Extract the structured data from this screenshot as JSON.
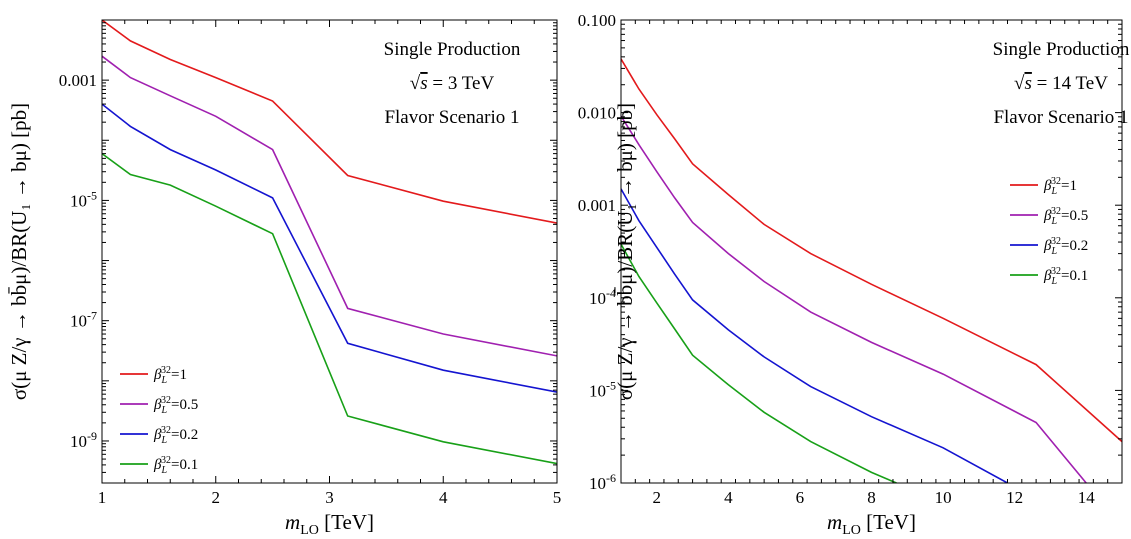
{
  "chart_data": [
    {
      "type": "line",
      "ylabel": "σ(μ Z/γ → bb̄μ)/BR(U₁ → bμ) [pb]",
      "xlabel": "m_LO [TeV]",
      "xlim": [
        1,
        5
      ],
      "ylim": [
        2e-10,
        0.01
      ],
      "yscale": "log",
      "xticks": [
        "1",
        "2",
        "3",
        "4",
        "5"
      ],
      "yticks": [
        {
          "v": 0.001,
          "label": "0.001"
        },
        {
          "v": 1e-05,
          "label": "10^-5"
        },
        {
          "v": 1e-07,
          "label": "10^-7"
        },
        {
          "v": 1e-09,
          "label": "10^-9"
        }
      ],
      "annotations": [
        "Single Production",
        "√s = 3 TeV",
        "Flavor Scenario 1"
      ],
      "legend_position": "bottom-left",
      "series": [
        {
          "name": "β_L^32=1",
          "color": "#e31a1c",
          "x": [
            1,
            1.25,
            1.6,
            2,
            2.5,
            3.16,
            4,
            5
          ],
          "y": [
            0.01,
            0.0045,
            0.0022,
            0.0011,
            0.00045,
            2.6e-05,
            9.7e-06,
            4.2e-06
          ]
        },
        {
          "name": "β_L^32=0.5",
          "color": "#a020b0",
          "x": [
            1,
            1.25,
            1.6,
            2,
            2.5,
            3.16,
            4,
            5
          ],
          "y": [
            0.0025,
            0.0011,
            0.00055,
            0.00025,
            7e-05,
            1.6e-07,
            6e-08,
            2.6e-08
          ]
        },
        {
          "name": "β_L^32=0.2",
          "color": "#1414d0",
          "x": [
            1,
            1.25,
            1.6,
            2,
            2.5,
            3.16,
            4,
            5
          ],
          "y": [
            0.0004,
            0.00017,
            7e-05,
            3.2e-05,
            1.1e-05,
            4.2e-08,
            1.5e-08,
            6.5e-09
          ]
        },
        {
          "name": "β_L^32=0.1",
          "color": "#18a018",
          "x": [
            1,
            1.25,
            1.6,
            2,
            2.5,
            3.16,
            4,
            5
          ],
          "y": [
            6e-05,
            2.7e-05,
            1.8e-05,
            8e-06,
            2.8e-06,
            2.6e-09,
            9.7e-10,
            4.2e-10
          ]
        }
      ]
    },
    {
      "type": "line",
      "ylabel": "σ(μ Z/γ → bb̄μ)/BR(U₁ → bμ) [pb]",
      "xlabel": "m_LO [TeV]",
      "xlim": [
        1,
        15
      ],
      "ylim": [
        1e-06,
        0.1
      ],
      "yscale": "log",
      "xticks": [
        "2",
        "4",
        "6",
        "8",
        "10",
        "12",
        "14"
      ],
      "yticks": [
        {
          "v": 0.1,
          "label": "0.100"
        },
        {
          "v": 0.01,
          "label": "0.010"
        },
        {
          "v": 0.001,
          "label": "0.001"
        },
        {
          "v": 0.0001,
          "label": "10^-4"
        },
        {
          "v": 1e-05,
          "label": "10^-5"
        },
        {
          "v": 1e-06,
          "label": "10^-6"
        }
      ],
      "annotations": [
        "Single Production",
        "√s = 14 TeV",
        "Flavor Scenario 1"
      ],
      "legend_position": "right",
      "series": [
        {
          "name": "β_L^32=1",
          "color": "#e31a1c",
          "x": [
            1,
            1.5,
            2,
            2.5,
            3,
            4,
            5,
            6.3,
            8,
            10,
            12.6,
            15
          ],
          "y": [
            0.038,
            0.018,
            0.0095,
            0.0052,
            0.0028,
            0.0013,
            0.00062,
            0.0003,
            0.00014,
            6e-05,
            1.9e-05,
            2.8e-06
          ]
        },
        {
          "name": "β_L^32=0.5",
          "color": "#a020b0",
          "x": [
            1,
            1.5,
            2,
            2.5,
            3,
            4,
            5,
            6.3,
            8,
            10,
            12.6,
            14
          ],
          "y": [
            0.0092,
            0.0045,
            0.0023,
            0.0012,
            0.00065,
            0.0003,
            0.00015,
            7e-05,
            3.3e-05,
            1.5e-05,
            4.5e-06,
            1e-06
          ]
        },
        {
          "name": "β_L^32=0.2",
          "color": "#1414d0",
          "x": [
            1,
            1.5,
            2,
            2.5,
            3,
            4,
            5,
            6.3,
            8,
            10,
            11.8
          ],
          "y": [
            0.0015,
            0.00068,
            0.00035,
            0.00018,
            9.5e-05,
            4.5e-05,
            2.3e-05,
            1.1e-05,
            5.2e-06,
            2.4e-06,
            1e-06
          ]
        },
        {
          "name": "β_L^32=0.1",
          "color": "#18a018",
          "x": [
            1,
            1.5,
            2,
            2.5,
            3,
            4,
            5,
            6.3,
            8,
            8.7
          ],
          "y": [
            0.00038,
            0.00017,
            8.8e-05,
            4.6e-05,
            2.4e-05,
            1.15e-05,
            5.8e-06,
            2.8e-06,
            1.3e-06,
            1e-06
          ]
        }
      ]
    }
  ]
}
